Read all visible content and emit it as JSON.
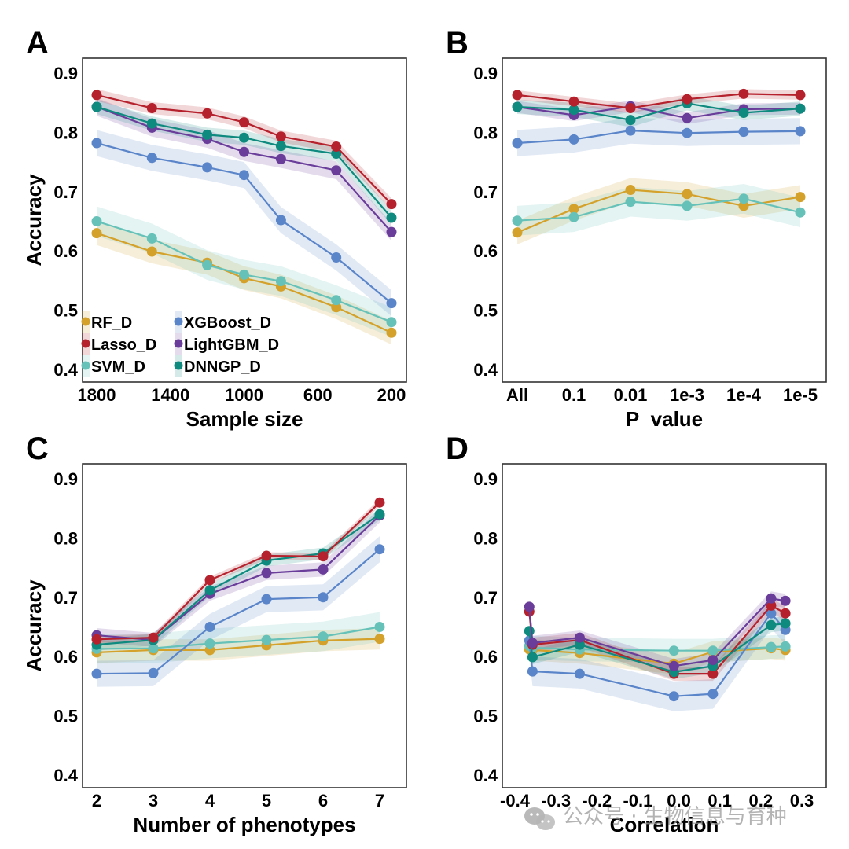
{
  "watermark": {
    "text": "公众号 · 生物信息与育种",
    "icon": "wechat-icon"
  },
  "series_meta": [
    {
      "key": "RF_D",
      "label": "RF_D",
      "color": "#D4A12A"
    },
    {
      "key": "Lasso_D",
      "label": "Lasso_D",
      "color": "#B5222D"
    },
    {
      "key": "SVM_D",
      "label": "SVM_D",
      "color": "#66C2B9"
    },
    {
      "key": "XGBoost_D",
      "label": "XGBoost_D",
      "color": "#5B85C9"
    },
    {
      "key": "LightGBM_D",
      "label": "LightGBM_D",
      "color": "#6A3D9A"
    },
    {
      "key": "DNNGP_D",
      "label": "DNNGP_D",
      "color": "#0E8A7E"
    }
  ],
  "chart_data": [
    {
      "panel": "A",
      "type": "line",
      "title": "",
      "xlabel": "Sample size",
      "ylabel": "Accuracy",
      "x_scale": "linear-reversed",
      "xlim": [
        1800,
        200
      ],
      "xticks": [
        1800,
        1400,
        1000,
        600,
        200
      ],
      "xtick_labels": [
        "1800",
        "1400",
        "1000",
        "600",
        "200"
      ],
      "ylim": [
        0.4,
        0.9
      ],
      "yticks": [
        0.9,
        0.8,
        0.7,
        0.6,
        0.5,
        0.4
      ],
      "ytick_labels": [
        "0.9",
        "0.8",
        "0.7",
        "0.6",
        "0.5",
        "0.4"
      ],
      "grid": false,
      "legend": "bottom-left",
      "x": [
        1800,
        1500,
        1200,
        1000,
        800,
        500,
        200
      ],
      "series": [
        {
          "name": "RF_D",
          "values": [
            0.63,
            0.599,
            0.58,
            0.554,
            0.54,
            0.505,
            0.462
          ],
          "band": 0.02
        },
        {
          "name": "SVM_D",
          "values": [
            0.65,
            0.621,
            0.576,
            0.56,
            0.549,
            0.517,
            0.48
          ],
          "band": 0.025
        },
        {
          "name": "XGBoost_D",
          "values": [
            0.782,
            0.757,
            0.741,
            0.728,
            0.652,
            0.589,
            0.512
          ],
          "band": 0.022
        },
        {
          "name": "LightGBM_D",
          "values": [
            0.843,
            0.808,
            0.789,
            0.767,
            0.755,
            0.736,
            0.632
          ],
          "band": 0.015
        },
        {
          "name": "DNNGP_D",
          "values": [
            0.843,
            0.815,
            0.796,
            0.791,
            0.777,
            0.764,
            0.656
          ],
          "band": 0.012
        },
        {
          "name": "Lasso_D",
          "values": [
            0.863,
            0.841,
            0.832,
            0.817,
            0.793,
            0.776,
            0.679
          ],
          "band": 0.01
        }
      ]
    },
    {
      "panel": "B",
      "type": "line",
      "title": "",
      "xlabel": "P_value",
      "ylabel": "",
      "x_scale": "categorical",
      "categories": [
        "All",
        "0.1",
        "0.01",
        "1e-3",
        "1e-4",
        "1e-5"
      ],
      "ylim": [
        0.4,
        0.9
      ],
      "yticks": [
        0.9,
        0.8,
        0.7,
        0.6,
        0.5,
        0.4
      ],
      "ytick_labels": [
        "0.9",
        "0.8",
        "0.7",
        "0.6",
        "0.5",
        "0.4"
      ],
      "grid": false,
      "series": [
        {
          "name": "RF_D",
          "values": [
            0.631,
            0.671,
            0.703,
            0.696,
            0.676,
            0.691
          ],
          "band": 0.02
        },
        {
          "name": "SVM_D",
          "values": [
            0.651,
            0.657,
            0.683,
            0.676,
            0.688,
            0.665
          ],
          "band": 0.025
        },
        {
          "name": "XGBoost_D",
          "values": [
            0.782,
            0.788,
            0.803,
            0.799,
            0.801,
            0.802
          ],
          "band": 0.022
        },
        {
          "name": "LightGBM_D",
          "values": [
            0.843,
            0.829,
            0.844,
            0.824,
            0.839,
            0.84
          ],
          "band": 0.01
        },
        {
          "name": "DNNGP_D",
          "values": [
            0.843,
            0.838,
            0.821,
            0.849,
            0.833,
            0.84
          ],
          "band": 0.012
        },
        {
          "name": "Lasso_D",
          "values": [
            0.863,
            0.852,
            0.841,
            0.856,
            0.865,
            0.863
          ],
          "band": 0.008
        }
      ]
    },
    {
      "panel": "C",
      "type": "line",
      "title": "",
      "xlabel": "Number of phenotypes",
      "ylabel": "Accuracy",
      "x_scale": "linear",
      "xlim": [
        2,
        7
      ],
      "xticks": [
        2,
        3,
        4,
        5,
        6,
        7
      ],
      "xtick_labels": [
        "2",
        "3",
        "4",
        "5",
        "6",
        "7"
      ],
      "ylim": [
        0.4,
        0.9
      ],
      "yticks": [
        0.9,
        0.8,
        0.7,
        0.6,
        0.5,
        0.4
      ],
      "ytick_labels": [
        "0.9",
        "0.8",
        "0.7",
        "0.6",
        "0.5",
        "0.4"
      ],
      "grid": false,
      "x": [
        2,
        3,
        4,
        5,
        6,
        7
      ],
      "series": [
        {
          "name": "RF_D",
          "values": [
            0.607,
            0.611,
            0.611,
            0.619,
            0.627,
            0.63
          ],
          "band": 0.018
        },
        {
          "name": "SVM_D",
          "values": [
            0.613,
            0.614,
            0.622,
            0.628,
            0.634,
            0.65
          ],
          "band": 0.025
        },
        {
          "name": "XGBoost_D",
          "values": [
            0.571,
            0.572,
            0.65,
            0.697,
            0.7,
            0.781
          ],
          "band": 0.022
        },
        {
          "name": "LightGBM_D",
          "values": [
            0.636,
            0.628,
            0.706,
            0.741,
            0.747,
            0.838
          ],
          "band": 0.012
        },
        {
          "name": "DNNGP_D",
          "values": [
            0.62,
            0.628,
            0.712,
            0.762,
            0.774,
            0.84
          ],
          "band": 0.01
        },
        {
          "name": "Lasso_D",
          "values": [
            0.629,
            0.632,
            0.729,
            0.77,
            0.769,
            0.86
          ],
          "band": 0.006
        }
      ]
    },
    {
      "panel": "D",
      "type": "line",
      "title": "",
      "xlabel": "Correlation",
      "ylabel": "",
      "x_scale": "linear",
      "xlim": [
        -0.4,
        0.3
      ],
      "xticks": [
        -0.4,
        -0.3,
        -0.2,
        -0.1,
        0.0,
        0.1,
        0.2,
        0.3
      ],
      "xtick_labels": [
        "-0.4",
        "-0.3",
        "-0.2",
        "-0.1",
        "0.0",
        "0.1",
        "0.2",
        "0.3"
      ],
      "ylim": [
        0.4,
        0.9
      ],
      "yticks": [
        0.9,
        0.8,
        0.7,
        0.6,
        0.5,
        0.4
      ],
      "ytick_labels": [
        "0.9",
        "0.8",
        "0.7",
        "0.6",
        "0.5",
        "0.4"
      ],
      "grid": false,
      "x": [
        -0.365,
        -0.357,
        -0.242,
        -0.012,
        0.083,
        0.225,
        0.26
      ],
      "series": [
        {
          "name": "RF_D",
          "values": [
            0.612,
            0.611,
            0.606,
            0.588,
            0.608,
            0.614,
            0.611
          ],
          "band": 0.018
        },
        {
          "name": "SVM_D",
          "values": [
            0.618,
            0.615,
            0.612,
            0.61,
            0.61,
            0.616,
            0.617
          ],
          "band": 0.02
        },
        {
          "name": "XGBoost_D",
          "values": [
            0.627,
            0.575,
            0.571,
            0.533,
            0.537,
            0.673,
            0.645
          ],
          "band": 0.025
        },
        {
          "name": "Lasso_D",
          "values": [
            0.676,
            0.62,
            0.628,
            0.571,
            0.571,
            0.686,
            0.673
          ],
          "band": 0.012
        },
        {
          "name": "DNNGP_D",
          "values": [
            0.643,
            0.599,
            0.62,
            0.574,
            0.584,
            0.653,
            0.656
          ],
          "band": 0.012
        },
        {
          "name": "LightGBM_D",
          "values": [
            0.684,
            0.623,
            0.632,
            0.584,
            0.594,
            0.698,
            0.694
          ],
          "band": 0.012
        }
      ]
    }
  ]
}
